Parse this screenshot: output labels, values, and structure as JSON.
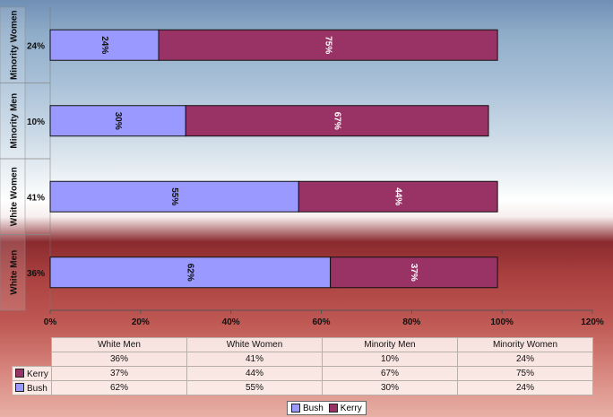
{
  "chart_data": {
    "type": "bar",
    "orientation": "horizontal",
    "stacked": true,
    "categories": [
      "Minority Women",
      "Minority Men",
      "White Women",
      "White Men"
    ],
    "category_share_labels": [
      "24%",
      "10%",
      "41%",
      "36%"
    ],
    "series": [
      {
        "name": "Bush",
        "values": [
          24,
          30,
          55,
          62
        ],
        "labels": [
          "24%",
          "30%",
          "55%",
          "62%"
        ],
        "color": "#9999ff"
      },
      {
        "name": "Kerry",
        "values": [
          75,
          67,
          44,
          37
        ],
        "labels": [
          "75%",
          "67%",
          "44%",
          "37%"
        ],
        "color": "#993366"
      }
    ],
    "x_ticks": [
      "0%",
      "20%",
      "40%",
      "60%",
      "80%",
      "100%",
      "120%"
    ],
    "xlim": [
      0,
      120
    ],
    "title": "",
    "xlabel": "",
    "ylabel": "",
    "legend_position": "bottom"
  },
  "table": {
    "headers": [
      "White Men",
      "White Women",
      "Minority Men",
      "Minority Women"
    ],
    "rows": [
      {
        "label": "",
        "values": [
          "36%",
          "41%",
          "10%",
          "24%"
        ]
      },
      {
        "label": "Kerry",
        "color": "#993366",
        "values": [
          "37%",
          "44%",
          "67%",
          "75%"
        ]
      },
      {
        "label": "Bush",
        "color": "#9999ff",
        "values": [
          "62%",
          "55%",
          "30%",
          "24%"
        ]
      }
    ]
  }
}
